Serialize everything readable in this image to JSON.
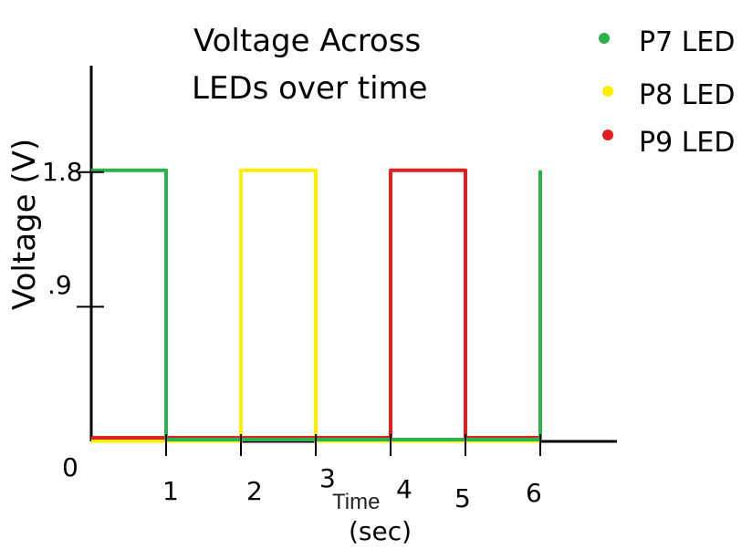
{
  "chart_data": {
    "type": "line",
    "title_lines": [
      "Voltage Across",
      "LEDs over time"
    ],
    "xlabel": "Time",
    "xlabel_unit": "(sec)",
    "ylabel": "Voltage (V)",
    "origin_label": "0",
    "x_ticks": [
      "1",
      "2",
      "3",
      "4",
      "5",
      "6"
    ],
    "y_ticks": [
      "1.8",
      ".9"
    ],
    "xlim": [
      0,
      7
    ],
    "ylim": [
      0,
      2.5
    ],
    "grid": false,
    "legend_position": "top-right",
    "series": [
      {
        "name": "P7 LED",
        "color": "#2bb24a",
        "x": [
          0,
          1,
          1,
          6,
          6
        ],
        "y": [
          1.8,
          1.8,
          0,
          0,
          1.8
        ]
      },
      {
        "name": "P8 LED",
        "color": "#ffee00",
        "x": [
          0,
          2,
          2,
          3,
          3,
          6
        ],
        "y": [
          0,
          0,
          1.8,
          1.8,
          0,
          0
        ]
      },
      {
        "name": "P9 LED",
        "color": "#e02020",
        "x": [
          0,
          4,
          4,
          5,
          5,
          6
        ],
        "y": [
          0,
          0,
          1.8,
          1.8,
          0,
          0
        ]
      }
    ]
  }
}
